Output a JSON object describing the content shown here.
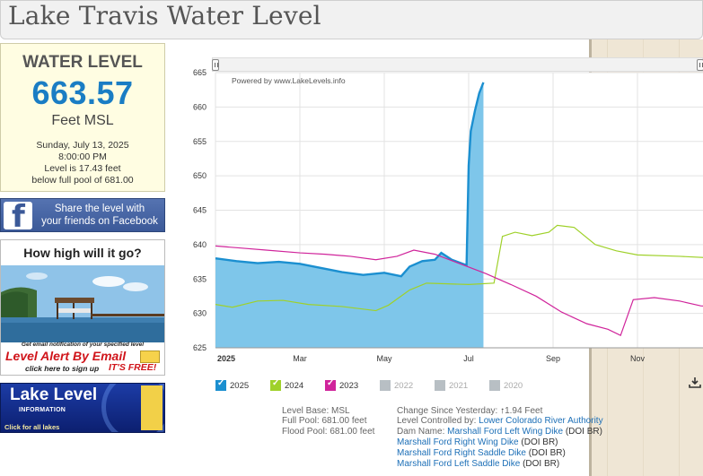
{
  "title": "Lake Travis Water Level",
  "level": {
    "heading": "WATER LEVEL",
    "value": "663.57",
    "unit": "Feet MSL",
    "date": "Sunday, July 13, 2025",
    "time": "8:00:00 PM",
    "below_line1": "Level is 17.43 feet",
    "below_line2": "below full pool of 681.00"
  },
  "facebook": {
    "line1": "Share the level with",
    "line2": "your friends on Facebook"
  },
  "alert_ad": {
    "heading": "How high will it go?",
    "small_text": "Get email notification of your specified level",
    "big_text": "Level Alert By Email",
    "click_text": "click here to sign up",
    "free_text": "IT'S FREE!"
  },
  "info_ad": {
    "title": "Lake Level",
    "subtitle": "INFORMATION",
    "click_text": "Click for all lakes"
  },
  "chart_note": "Powered by www.LakeLevels.info",
  "chart_data": {
    "type": "line",
    "ylim": [
      625,
      665
    ],
    "yticks": [
      625,
      630,
      635,
      640,
      645,
      650,
      655,
      660,
      665
    ],
    "xlim": [
      0,
      12
    ],
    "xticks": [
      {
        "x": 0,
        "label": "2025"
      },
      {
        "x": 2,
        "label": "Mar"
      },
      {
        "x": 4,
        "label": "May"
      },
      {
        "x": 6,
        "label": "Jul"
      },
      {
        "x": 8,
        "label": "Sep"
      },
      {
        "x": 10,
        "label": "Nov"
      }
    ],
    "grid": true,
    "series": [
      {
        "name": "2025",
        "color": "#1b8fd0",
        "fill": "#7ec6ea",
        "area": true,
        "points": [
          [
            0,
            638
          ],
          [
            0.5,
            637.6
          ],
          [
            1,
            637.3
          ],
          [
            1.5,
            637.5
          ],
          [
            2,
            637.2
          ],
          [
            2.5,
            636.6
          ],
          [
            3,
            636.0
          ],
          [
            3.5,
            635.6
          ],
          [
            4,
            635.9
          ],
          [
            4.4,
            635.4
          ],
          [
            4.6,
            636.8
          ],
          [
            4.9,
            637.6
          ],
          [
            5.2,
            637.8
          ],
          [
            5.35,
            638.8
          ],
          [
            5.6,
            637.8
          ],
          [
            5.95,
            637.0
          ],
          [
            6.0,
            651.5
          ],
          [
            6.05,
            656.5
          ],
          [
            6.15,
            659.5
          ],
          [
            6.25,
            662
          ],
          [
            6.35,
            663.57
          ]
        ]
      },
      {
        "name": "2024",
        "color": "#9fd12a",
        "area": false,
        "points": [
          [
            0,
            631.3
          ],
          [
            0.4,
            630.9
          ],
          [
            1,
            631.8
          ],
          [
            1.6,
            631.9
          ],
          [
            2.2,
            631.3
          ],
          [
            3,
            631.0
          ],
          [
            3.8,
            630.4
          ],
          [
            4.1,
            631.2
          ],
          [
            4.6,
            633.4
          ],
          [
            5.0,
            634.4
          ],
          [
            5.5,
            634.3
          ],
          [
            6.0,
            634.2
          ],
          [
            6.6,
            634.4
          ],
          [
            6.8,
            641.2
          ],
          [
            7.1,
            641.8
          ],
          [
            7.5,
            641.3
          ],
          [
            7.9,
            641.8
          ],
          [
            8.1,
            642.8
          ],
          [
            8.5,
            642.5
          ],
          [
            9.0,
            640.0
          ],
          [
            9.5,
            639.1
          ],
          [
            10,
            638.5
          ],
          [
            11,
            638.3
          ],
          [
            12,
            638.0
          ]
        ]
      },
      {
        "name": "2023",
        "color": "#d0249b",
        "area": false,
        "points": [
          [
            0,
            639.8
          ],
          [
            0.6,
            639.5
          ],
          [
            1.2,
            639.2
          ],
          [
            2,
            638.8
          ],
          [
            2.6,
            638.6
          ],
          [
            3.2,
            638.3
          ],
          [
            3.8,
            637.8
          ],
          [
            4.3,
            638.3
          ],
          [
            4.7,
            639.2
          ],
          [
            5.2,
            638.6
          ],
          [
            5.8,
            637.2
          ],
          [
            6.4,
            635.8
          ],
          [
            7.0,
            634.2
          ],
          [
            7.6,
            632.5
          ],
          [
            8.2,
            630.2
          ],
          [
            8.8,
            628.5
          ],
          [
            9.3,
            627.7
          ],
          [
            9.6,
            626.8
          ],
          [
            9.9,
            632.0
          ],
          [
            10.4,
            632.3
          ],
          [
            11,
            631.8
          ],
          [
            11.5,
            631.1
          ],
          [
            12,
            630.9
          ]
        ]
      }
    ]
  },
  "legend": [
    {
      "label": "2025",
      "color": "#1b8fd0",
      "checked": true
    },
    {
      "label": "2024",
      "color": "#9fd12a",
      "checked": true
    },
    {
      "label": "2023",
      "color": "#d0249b",
      "checked": true
    },
    {
      "label": "2022",
      "color": "#b8bfc4",
      "checked": false
    },
    {
      "label": "2021",
      "color": "#b8bfc4",
      "checked": false
    },
    {
      "label": "2020",
      "color": "#b8bfc4",
      "checked": false
    }
  ],
  "info": {
    "level_base": "Level Base: MSL",
    "full_pool": "Full Pool: 681.00 feet",
    "flood_pool": "Flood Pool: 681.00 feet",
    "change_label": "Change Since Yesterday: ",
    "change_arrow": "↑",
    "change_value": "1.94 Feet",
    "controlled_label": "Level Controlled by: ",
    "controlled_link": "Lower Colorado River Authority",
    "dam_label": "Dam Name: ",
    "dams": [
      {
        "name": "Marshall Ford Left Wing Dike",
        "owner": " (DOI BR)"
      },
      {
        "name": "Marshall Ford Right Wing Dike",
        "owner": " (DOI BR)"
      },
      {
        "name": "Marshall Ford Right Saddle Dike",
        "owner": " (DOI BR)"
      },
      {
        "name": "Marshall Ford Left Saddle Dike",
        "owner": " (DOI BR)"
      }
    ]
  }
}
